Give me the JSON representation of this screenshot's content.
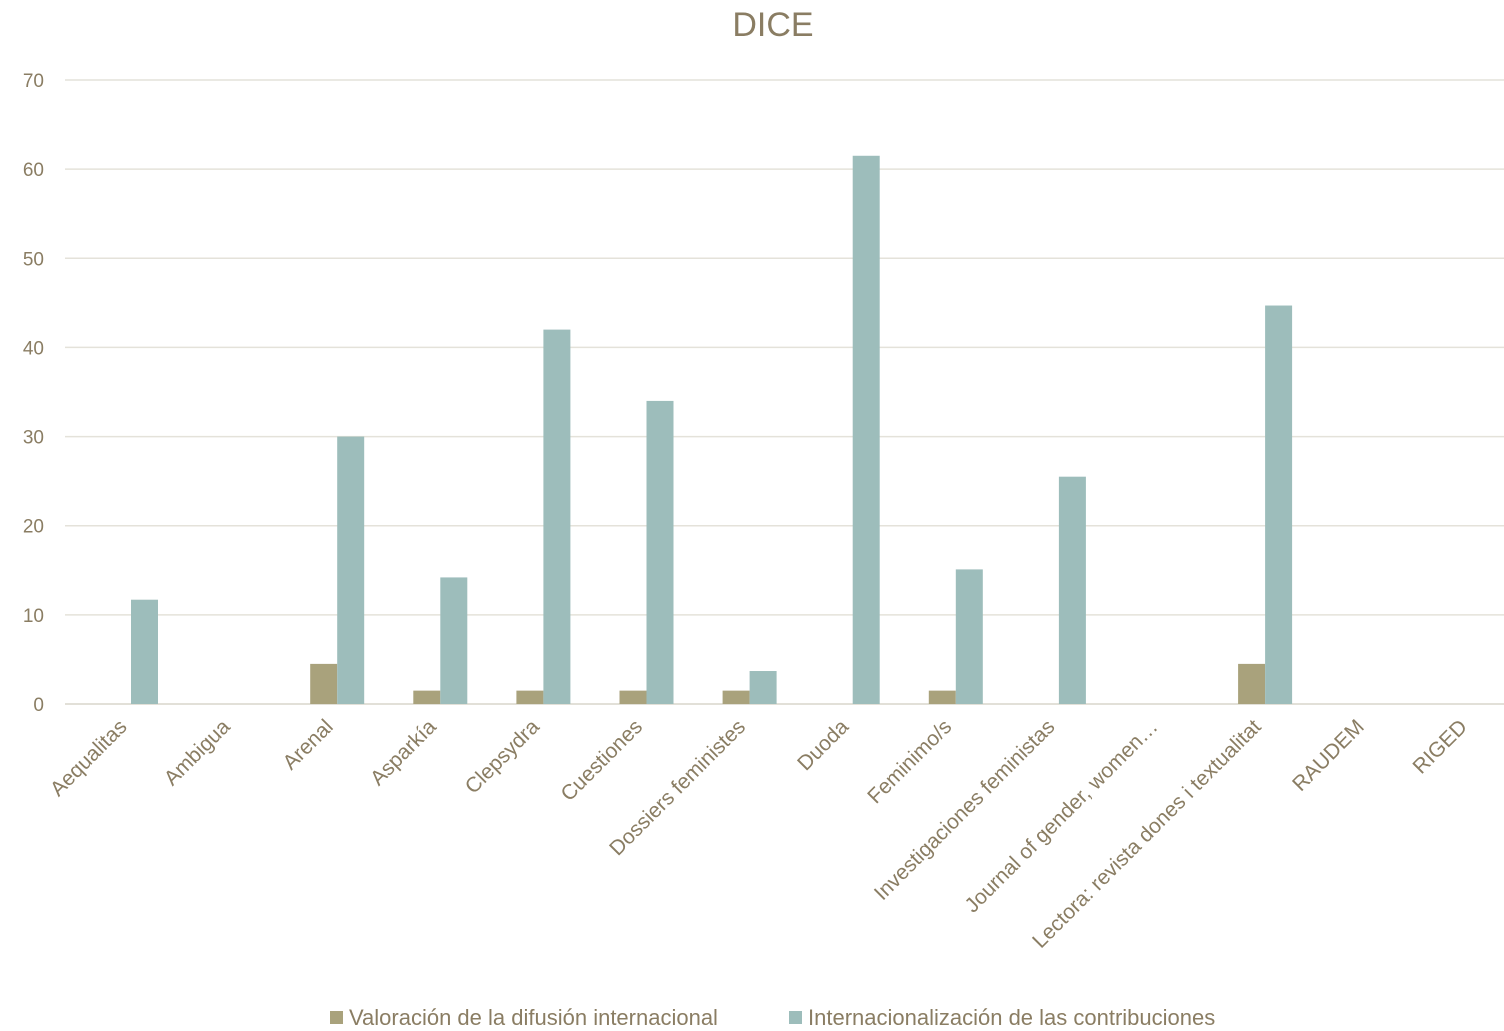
{
  "chart_data": {
    "type": "bar",
    "title": "DICE",
    "xlabel": "",
    "ylabel": "",
    "ylim": [
      0,
      70
    ],
    "yticks": [
      0,
      10,
      20,
      30,
      40,
      50,
      60,
      70
    ],
    "grid": true,
    "legend_position": "bottom",
    "categories": [
      "Aequalitas",
      "Ambigua",
      "Arenal",
      "Asparkía",
      "Clepsydra",
      "Cuestiones",
      "Dossiers feministes",
      "Duoda",
      "Feminimo/s",
      "Investigaciones feministas",
      "Journal of gender, women…",
      "Lectora: revista dones i textualitat",
      "RAUDEM",
      "RIGED"
    ],
    "series": [
      {
        "name": "Valoración de la difusión internacional",
        "color": "#a9a27c",
        "values": [
          0,
          0,
          4.5,
          1.5,
          1.5,
          1.5,
          1.5,
          0,
          1.5,
          0,
          0,
          4.5,
          0,
          0
        ]
      },
      {
        "name": "Internacionalización de las contribuciones",
        "color": "#9dbdbb",
        "values": [
          11.7,
          0,
          30,
          14.2,
          42,
          34,
          3.7,
          61.5,
          15.1,
          25.5,
          0,
          44.7,
          0,
          0
        ]
      }
    ]
  }
}
